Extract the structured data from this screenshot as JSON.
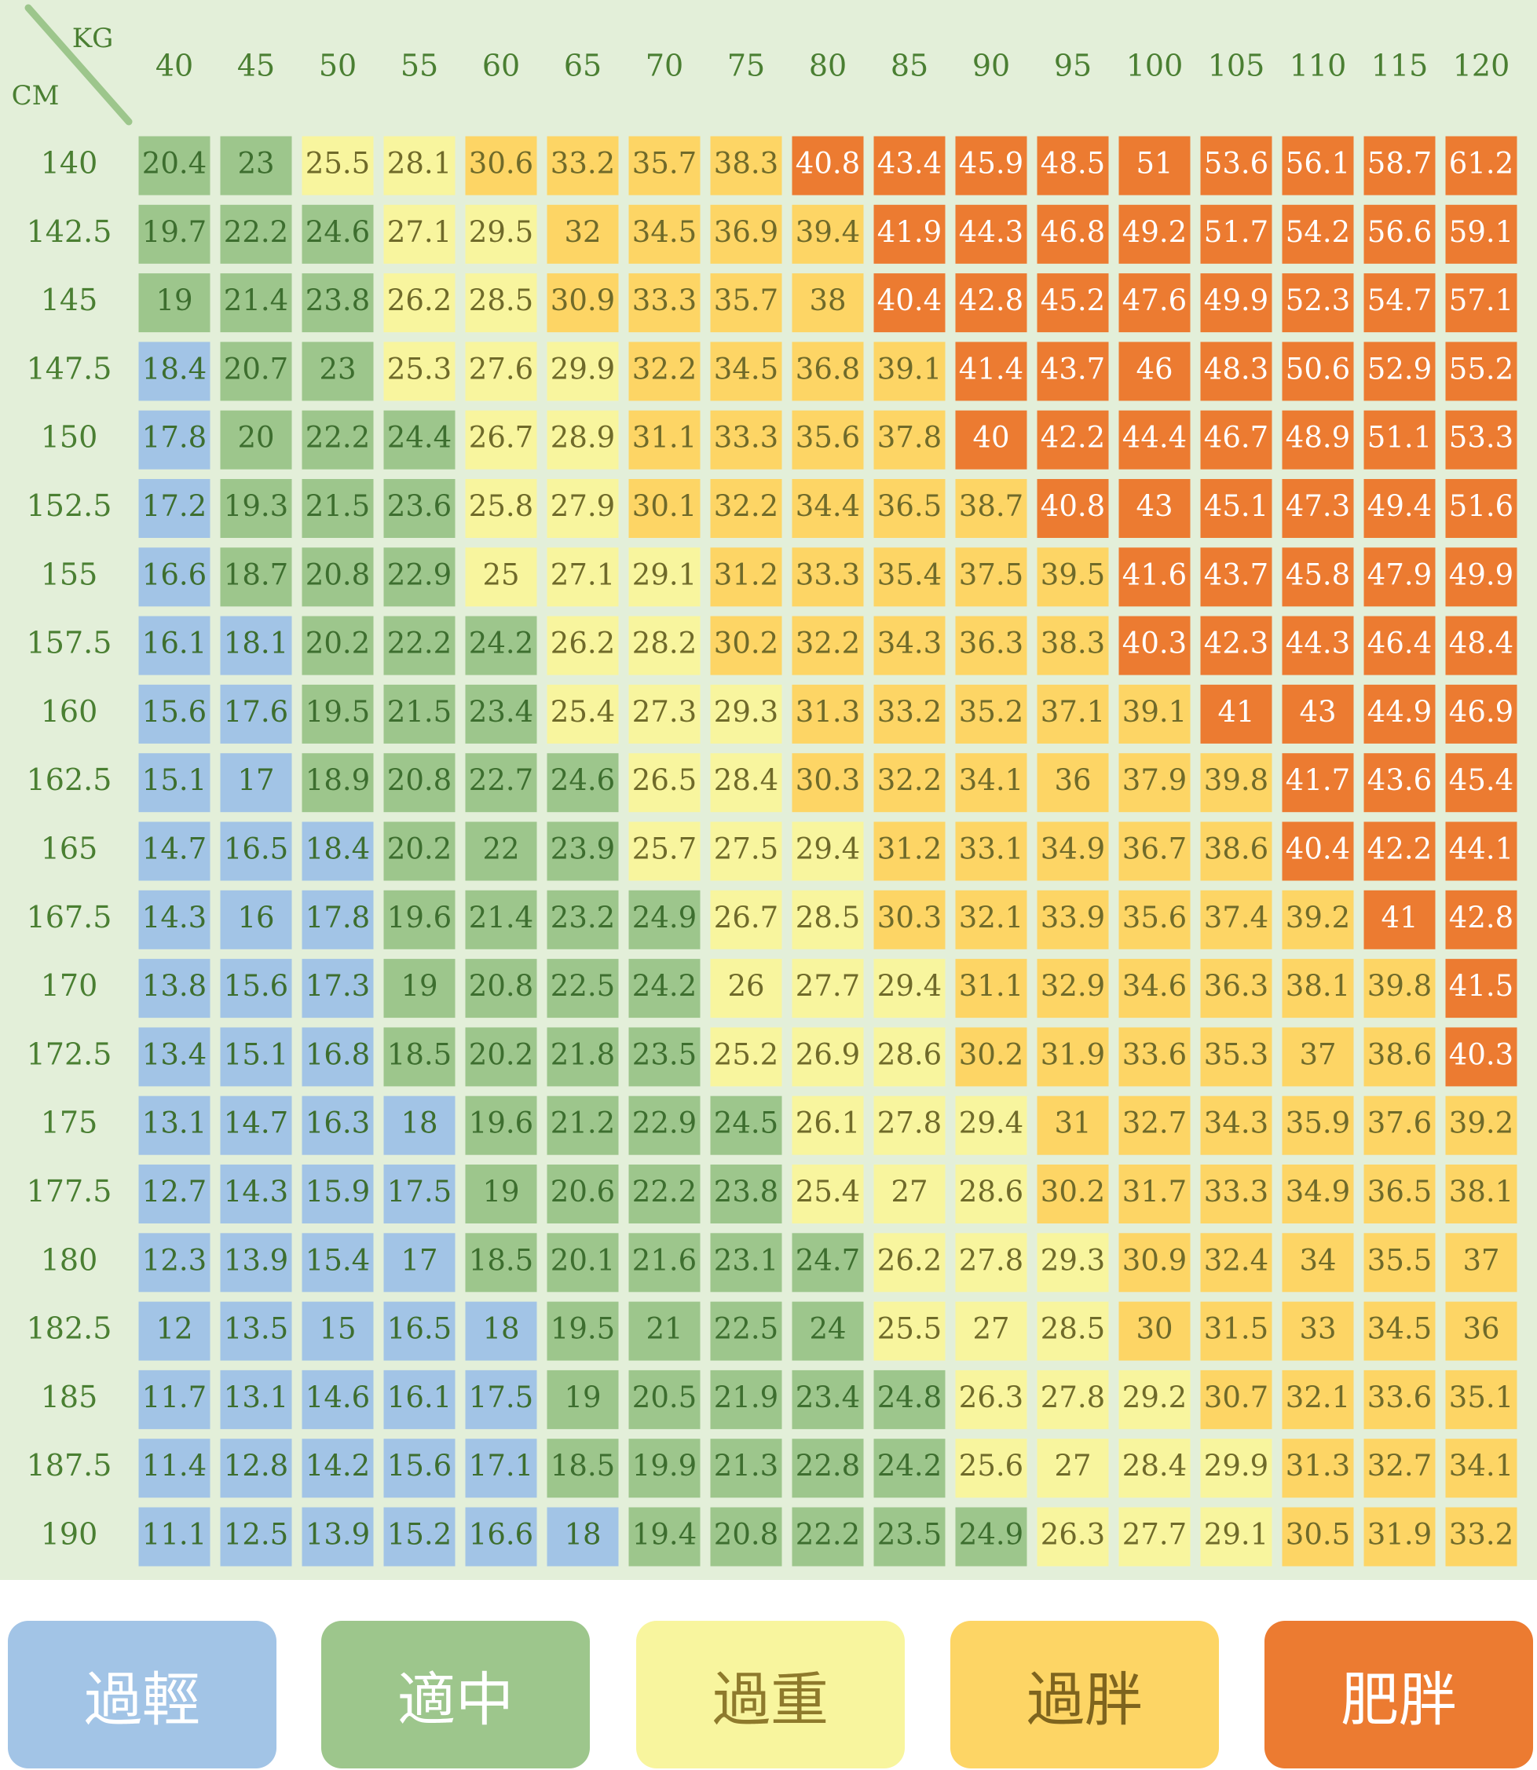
{
  "chart_data": {
    "type": "table",
    "corner_labels": {
      "x_unit": "KG",
      "y_unit": "CM"
    },
    "columns": [
      "40",
      "45",
      "50",
      "55",
      "60",
      "65",
      "70",
      "75",
      "80",
      "85",
      "90",
      "95",
      "100",
      "105",
      "110",
      "115",
      "120"
    ],
    "rows": [
      "140",
      "142.5",
      "145",
      "147.5",
      "150",
      "152.5",
      "155",
      "157.5",
      "160",
      "162.5",
      "165",
      "167.5",
      "170",
      "172.5",
      "175",
      "177.5",
      "180",
      "182.5",
      "185",
      "187.5",
      "190"
    ],
    "values": [
      [
        "20.4",
        "23",
        "25.5",
        "28.1",
        "30.6",
        "33.2",
        "35.7",
        "38.3",
        "40.8",
        "43.4",
        "45.9",
        "48.5",
        "51",
        "53.6",
        "56.1",
        "58.7",
        "61.2"
      ],
      [
        "19.7",
        "22.2",
        "24.6",
        "27.1",
        "29.5",
        "32",
        "34.5",
        "36.9",
        "39.4",
        "41.9",
        "44.3",
        "46.8",
        "49.2",
        "51.7",
        "54.2",
        "56.6",
        "59.1"
      ],
      [
        "19",
        "21.4",
        "23.8",
        "26.2",
        "28.5",
        "30.9",
        "33.3",
        "35.7",
        "38",
        "40.4",
        "42.8",
        "45.2",
        "47.6",
        "49.9",
        "52.3",
        "54.7",
        "57.1"
      ],
      [
        "18.4",
        "20.7",
        "23",
        "25.3",
        "27.6",
        "29.9",
        "32.2",
        "34.5",
        "36.8",
        "39.1",
        "41.4",
        "43.7",
        "46",
        "48.3",
        "50.6",
        "52.9",
        "55.2"
      ],
      [
        "17.8",
        "20",
        "22.2",
        "24.4",
        "26.7",
        "28.9",
        "31.1",
        "33.3",
        "35.6",
        "37.8",
        "40",
        "42.2",
        "44.4",
        "46.7",
        "48.9",
        "51.1",
        "53.3"
      ],
      [
        "17.2",
        "19.3",
        "21.5",
        "23.6",
        "25.8",
        "27.9",
        "30.1",
        "32.2",
        "34.4",
        "36.5",
        "38.7",
        "40.8",
        "43",
        "45.1",
        "47.3",
        "49.4",
        "51.6"
      ],
      [
        "16.6",
        "18.7",
        "20.8",
        "22.9",
        "25",
        "27.1",
        "29.1",
        "31.2",
        "33.3",
        "35.4",
        "37.5",
        "39.5",
        "41.6",
        "43.7",
        "45.8",
        "47.9",
        "49.9"
      ],
      [
        "16.1",
        "18.1",
        "20.2",
        "22.2",
        "24.2",
        "26.2",
        "28.2",
        "30.2",
        "32.2",
        "34.3",
        "36.3",
        "38.3",
        "40.3",
        "42.3",
        "44.3",
        "46.4",
        "48.4"
      ],
      [
        "15.6",
        "17.6",
        "19.5",
        "21.5",
        "23.4",
        "25.4",
        "27.3",
        "29.3",
        "31.3",
        "33.2",
        "35.2",
        "37.1",
        "39.1",
        "41",
        "43",
        "44.9",
        "46.9"
      ],
      [
        "15.1",
        "17",
        "18.9",
        "20.8",
        "22.7",
        "24.6",
        "26.5",
        "28.4",
        "30.3",
        "32.2",
        "34.1",
        "36",
        "37.9",
        "39.8",
        "41.7",
        "43.6",
        "45.4"
      ],
      [
        "14.7",
        "16.5",
        "18.4",
        "20.2",
        "22",
        "23.9",
        "25.7",
        "27.5",
        "29.4",
        "31.2",
        "33.1",
        "34.9",
        "36.7",
        "38.6",
        "40.4",
        "42.2",
        "44.1"
      ],
      [
        "14.3",
        "16",
        "17.8",
        "19.6",
        "21.4",
        "23.2",
        "24.9",
        "26.7",
        "28.5",
        "30.3",
        "32.1",
        "33.9",
        "35.6",
        "37.4",
        "39.2",
        "41",
        "42.8"
      ],
      [
        "13.8",
        "15.6",
        "17.3",
        "19",
        "20.8",
        "22.5",
        "24.2",
        "26",
        "27.7",
        "29.4",
        "31.1",
        "32.9",
        "34.6",
        "36.3",
        "38.1",
        "39.8",
        "41.5"
      ],
      [
        "13.4",
        "15.1",
        "16.8",
        "18.5",
        "20.2",
        "21.8",
        "23.5",
        "25.2",
        "26.9",
        "28.6",
        "30.2",
        "31.9",
        "33.6",
        "35.3",
        "37",
        "38.6",
        "40.3"
      ],
      [
        "13.1",
        "14.7",
        "16.3",
        "18",
        "19.6",
        "21.2",
        "22.9",
        "24.5",
        "26.1",
        "27.8",
        "29.4",
        "31",
        "32.7",
        "34.3",
        "35.9",
        "37.6",
        "39.2"
      ],
      [
        "12.7",
        "14.3",
        "15.9",
        "17.5",
        "19",
        "20.6",
        "22.2",
        "23.8",
        "25.4",
        "27",
        "28.6",
        "30.2",
        "31.7",
        "33.3",
        "34.9",
        "36.5",
        "38.1"
      ],
      [
        "12.3",
        "13.9",
        "15.4",
        "17",
        "18.5",
        "20.1",
        "21.6",
        "23.1",
        "24.7",
        "26.2",
        "27.8",
        "29.3",
        "30.9",
        "32.4",
        "34",
        "35.5",
        "37"
      ],
      [
        "12",
        "13.5",
        "15",
        "16.5",
        "18",
        "19.5",
        "21",
        "22.5",
        "24",
        "25.5",
        "27",
        "28.5",
        "30",
        "31.5",
        "33",
        "34.5",
        "36"
      ],
      [
        "11.7",
        "13.1",
        "14.6",
        "16.1",
        "17.5",
        "19",
        "20.5",
        "21.9",
        "23.4",
        "24.8",
        "26.3",
        "27.8",
        "29.2",
        "30.7",
        "32.1",
        "33.6",
        "35.1"
      ],
      [
        "11.4",
        "12.8",
        "14.2",
        "15.6",
        "17.1",
        "18.5",
        "19.9",
        "21.3",
        "22.8",
        "24.2",
        "25.6",
        "27",
        "28.4",
        "29.9",
        "31.3",
        "32.7",
        "34.1"
      ],
      [
        "11.1",
        "12.5",
        "13.9",
        "15.2",
        "16.6",
        "18",
        "19.4",
        "20.8",
        "22.2",
        "23.5",
        "24.9",
        "26.3",
        "27.7",
        "29.1",
        "30.5",
        "31.9",
        "33.2"
      ]
    ],
    "categories": [
      {
        "label": "過輕",
        "color": "#a2c4e6",
        "text_color": "#ffffff",
        "upper": 18.5
      },
      {
        "label": "適中",
        "color": "#9dc68c",
        "text_color": "#ffffff",
        "upper": 25
      },
      {
        "label": "過重",
        "color": "#f8f59e",
        "text_color": "#8e7a2c",
        "upper": 30
      },
      {
        "label": "過胖",
        "color": "#fdd565",
        "text_color": "#7e641e",
        "upper": 40
      },
      {
        "label": "肥胖",
        "color": "#ec7b31",
        "text_color": "#ffffff",
        "upper": 999
      }
    ],
    "header_text_color": "#4a7f32",
    "diagonal_color": "#9dc68c",
    "panel_color": "#e3efd9"
  }
}
